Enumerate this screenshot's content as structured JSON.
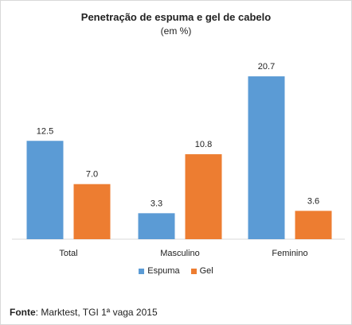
{
  "chart_data": {
    "type": "bar",
    "title": "Penetração de espuma e gel de cabelo",
    "subtitle": "(em %)",
    "categories": [
      "Total",
      "Masculino",
      "Feminino"
    ],
    "series": [
      {
        "name": "Espuma",
        "values": [
          12.5,
          3.3,
          20.7
        ],
        "color": "#5b9bd5"
      },
      {
        "name": "Gel",
        "values": [
          7.0,
          10.8,
          3.6
        ],
        "color": "#ed7d31"
      }
    ],
    "data_labels": [
      [
        "12.5",
        "3.3",
        "20.7"
      ],
      [
        "7.0",
        "10.8",
        "3.6"
      ]
    ],
    "ylim": [
      0,
      22
    ],
    "grid": false,
    "legend_position": "bottom"
  },
  "source": {
    "label": "Fonte",
    "text": ": Marktest, TGI 1ª vaga 2015"
  }
}
